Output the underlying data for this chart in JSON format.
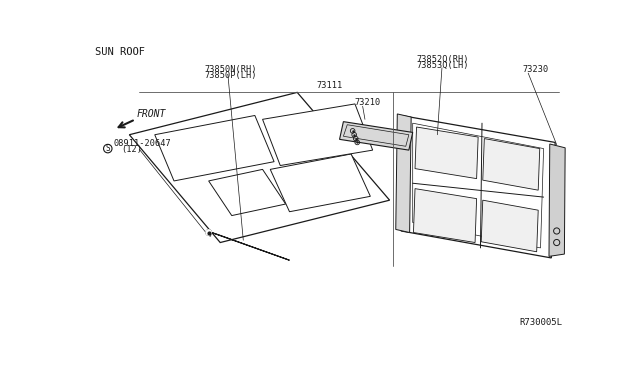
{
  "bg_color": "#ffffff",
  "line_color": "#1a1a1a",
  "title": "SUN ROOF",
  "ref_code": "R730005L",
  "labels": {
    "73850N_RH": "73850N(RH)",
    "73850P_LH": "73850P(LH)",
    "08911": "08911-20647",
    "08911_2": "(12)",
    "73852Q_RH": "73852Q(RH)",
    "73853Q_LH": "73853Q(LH)",
    "73230": "73230",
    "73210": "73210",
    "73111": "73111",
    "front": "FRONT"
  },
  "figsize": [
    6.4,
    3.72
  ],
  "dpi": 100
}
